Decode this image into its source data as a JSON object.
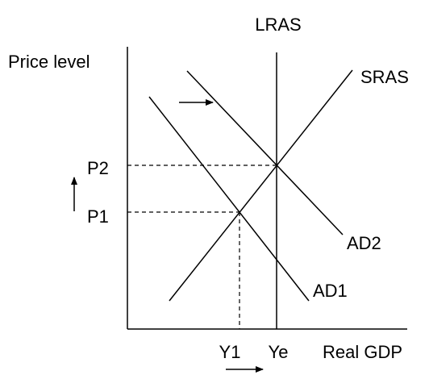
{
  "axes": {
    "y_label": "Price level",
    "x_label": "Real GDP"
  },
  "curves": {
    "lras": "LRAS",
    "sras": "SRAS",
    "ad1": "AD1",
    "ad2": "AD2"
  },
  "price_levels": [
    "P2",
    "P1"
  ],
  "outputs": [
    "Y1",
    "Ye"
  ]
}
